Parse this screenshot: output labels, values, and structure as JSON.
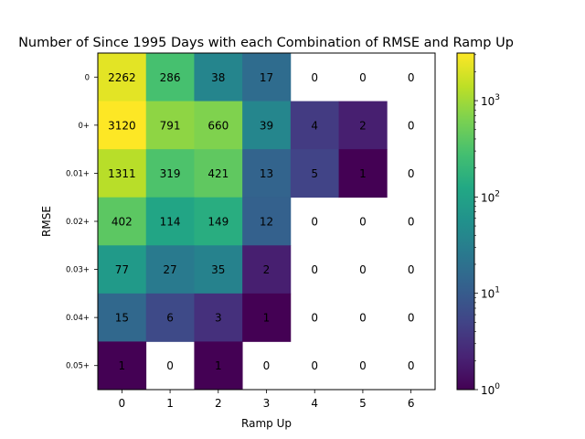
{
  "chart_data": {
    "type": "heatmap",
    "title": "Number of Since 1995 Days with each Combination of RMSE and Ramp Up",
    "xlabel": "Ramp Up",
    "ylabel": "RMSE",
    "x_categories": [
      "0",
      "1",
      "2",
      "3",
      "4",
      "5",
      "6"
    ],
    "y_categories": [
      "0",
      "0+",
      "0.01+",
      "0.02+",
      "0.03+",
      "0.04+",
      "0.05+"
    ],
    "values": [
      [
        2262,
        286,
        38,
        17,
        0,
        0,
        0
      ],
      [
        3120,
        791,
        660,
        39,
        4,
        2,
        0
      ],
      [
        1311,
        319,
        421,
        13,
        5,
        1,
        0
      ],
      [
        402,
        114,
        149,
        12,
        0,
        0,
        0
      ],
      [
        77,
        27,
        35,
        2,
        0,
        0,
        0
      ],
      [
        15,
        6,
        3,
        1,
        0,
        0,
        0
      ],
      [
        1,
        0,
        1,
        0,
        0,
        0,
        0
      ]
    ],
    "color_scale": "log",
    "colormap": "viridis",
    "colorbar_range": [
      1,
      3120
    ],
    "colorbar_ticks": [
      {
        "value": 1,
        "base": "10",
        "exp": "0"
      },
      {
        "value": 10,
        "base": "10",
        "exp": "1"
      },
      {
        "value": 100,
        "base": "10",
        "exp": "2"
      },
      {
        "value": 1000,
        "base": "10",
        "exp": "3"
      }
    ],
    "zero_cells": "white (not colored)",
    "grid": false,
    "legend": "colorbar-right"
  }
}
